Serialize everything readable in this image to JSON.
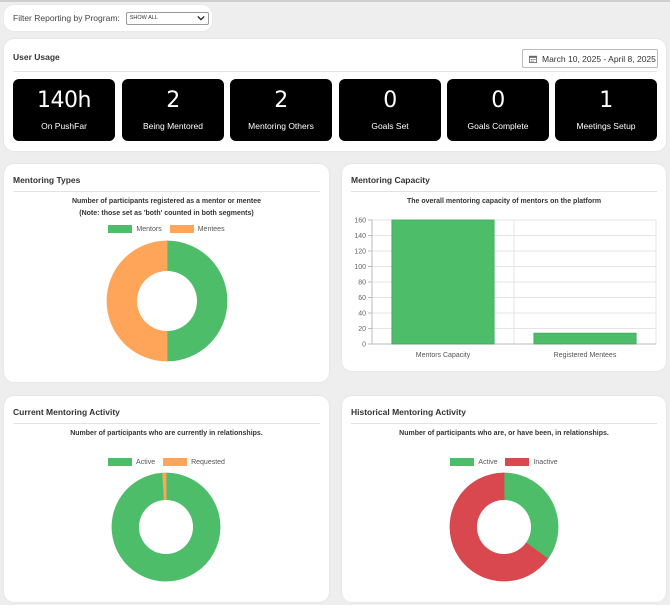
{
  "filter": {
    "label": "Filter Reporting by Program:",
    "selected": "SHOW ALL"
  },
  "usage": {
    "title": "User Usage",
    "date_range": "March 10, 2025 - April 8, 2025",
    "stats": [
      {
        "value": "140h",
        "label": "On PushFar"
      },
      {
        "value": "2",
        "label": "Being Mentored"
      },
      {
        "value": "2",
        "label": "Mentoring Others"
      },
      {
        "value": "0",
        "label": "Goals Set"
      },
      {
        "value": "0",
        "label": "Goals Complete"
      },
      {
        "value": "1",
        "label": "Meetings Setup"
      }
    ]
  },
  "colors": {
    "green": "#4dbd6a",
    "orange": "#ffa55a",
    "red": "#d9474f"
  },
  "types": {
    "title": "Mentoring Types",
    "caption_1": "Number of participants registered as a mentor or mentee",
    "caption_2": "(Note: those set as 'both' counted in both segments)",
    "legend": [
      "Mentors",
      "Mentees"
    ]
  },
  "capacity": {
    "title": "Mentoring Capacity",
    "caption": "The overall mentoring capacity of mentors on the platform"
  },
  "current": {
    "title": "Current Mentoring Activity",
    "caption": "Number of participants who are currently in relationships.",
    "legend": [
      "Active",
      "Requested"
    ]
  },
  "historical": {
    "title": "Historical Mentoring Activity",
    "caption": "Number of participants who are, or have been, in relationships.",
    "legend": [
      "Active",
      "Inactive"
    ]
  },
  "chart_data": [
    {
      "type": "pie",
      "labels": [
        "Mentors",
        "Mentees"
      ],
      "values": [
        50,
        50
      ],
      "donut": true
    },
    {
      "type": "bar",
      "categories": [
        "Mentors Capacity",
        "Registered Mentees"
      ],
      "values": [
        160,
        14
      ],
      "ylim": [
        0,
        160
      ],
      "yticks": [
        0,
        20,
        40,
        60,
        80,
        100,
        120,
        140,
        160
      ],
      "grid": true
    },
    {
      "type": "pie",
      "labels": [
        "Active",
        "Requested"
      ],
      "values": [
        99,
        1
      ],
      "donut": true
    },
    {
      "type": "pie",
      "labels": [
        "Active",
        "Inactive"
      ],
      "values": [
        35,
        65
      ],
      "donut": true
    }
  ]
}
